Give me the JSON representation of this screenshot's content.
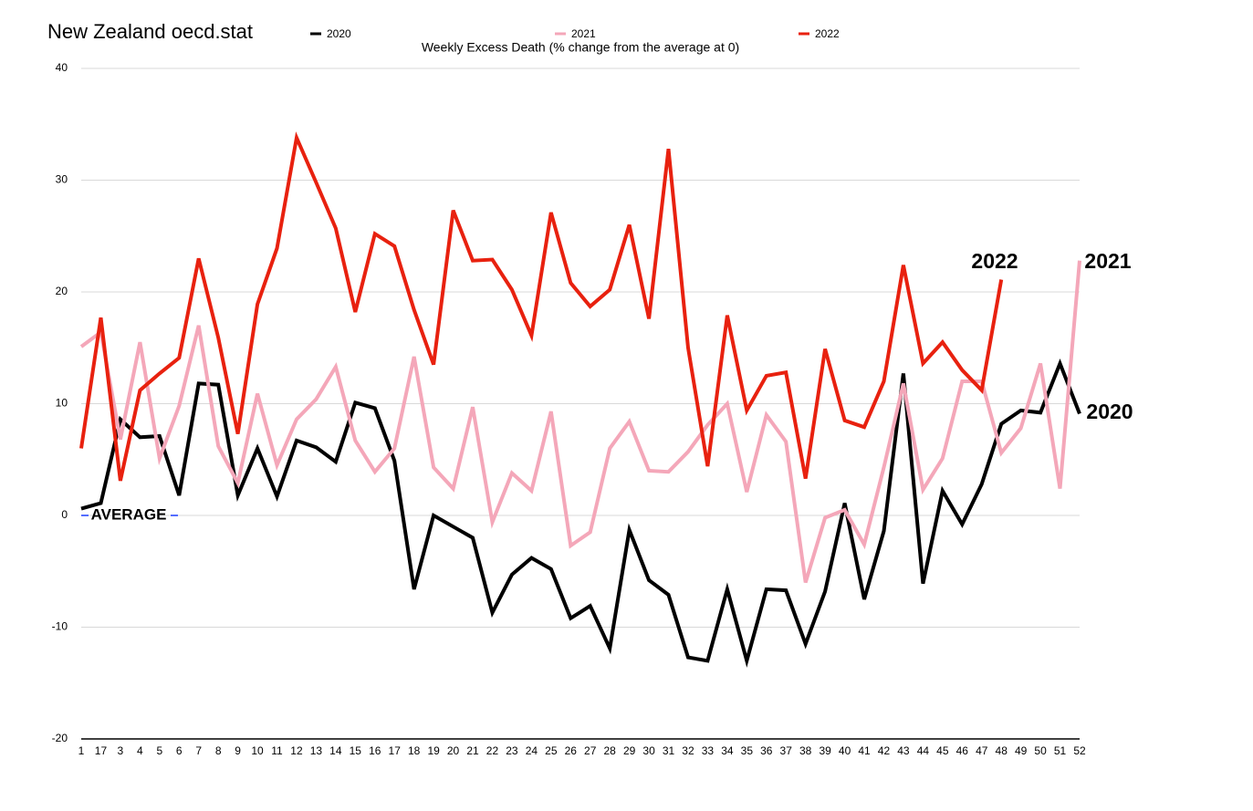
{
  "chart_data": {
    "type": "line",
    "title": "New Zealand oecd.stat",
    "subtitle": "Weekly Excess Death (% change from the average at 0)",
    "categories": [
      "1",
      "17",
      "3",
      "4",
      "5",
      "6",
      "7",
      "8",
      "9",
      "10",
      "11",
      "12",
      "13",
      "14",
      "15",
      "16",
      "17",
      "18",
      "19",
      "20",
      "21",
      "22",
      "23",
      "24",
      "25",
      "26",
      "27",
      "28",
      "29",
      "30",
      "31",
      "32",
      "33",
      "34",
      "35",
      "36",
      "37",
      "38",
      "39",
      "40",
      "41",
      "42",
      "43",
      "44",
      "45",
      "46",
      "47",
      "48",
      "49",
      "50",
      "51",
      "52"
    ],
    "series": [
      {
        "name": "2020",
        "color": "#000000",
        "values": [
          0.6,
          1.1,
          8.6,
          7.0,
          7.1,
          1.8,
          11.8,
          11.7,
          1.8,
          6.0,
          1.7,
          6.7,
          6.1,
          4.8,
          10.1,
          9.6,
          4.9,
          -6.6,
          0,
          -1.0,
          -2.0,
          -8.7,
          -5.3,
          -3.8,
          -4.8,
          -9.2,
          -8.1,
          -11.9,
          -1.3,
          -5.8,
          -7.1,
          -12.7,
          -13.0,
          -6.6,
          -13.0,
          -6.6,
          -6.7,
          -11.5,
          -6.8,
          1.1,
          -7.5,
          -1.4,
          12.7,
          -6.1,
          2.2,
          -0.8,
          2.8,
          8.2,
          9.4,
          9.2,
          13.6,
          9.1
        ]
      },
      {
        "name": "2021",
        "color": "#f4a7b9",
        "values": [
          15.1,
          16.4,
          6.8,
          15.5,
          5.1,
          9.8,
          17.0,
          6.2,
          2.9,
          10.9,
          4.5,
          8.6,
          10.4,
          13.3,
          6.7,
          3.9,
          6.0,
          14.2,
          4.3,
          2.4,
          9.7,
          -0.6,
          3.8,
          2.2,
          9.3,
          -2.7,
          -1.5,
          6.0,
          8.4,
          4.0,
          3.9,
          5.7,
          8.1,
          10.0,
          2.1,
          9.0,
          6.6,
          -6.0,
          -0.2,
          0.5,
          -2.6,
          4.3,
          11.8,
          2.3,
          5.1,
          12.0,
          12.0,
          5.6,
          7.8,
          13.6,
          2.4,
          22.8
        ]
      },
      {
        "name": "2022",
        "color": "#e8210f",
        "values": [
          6.0,
          17.7,
          3.1,
          11.2,
          12.7,
          14.1,
          23.0,
          15.9,
          7.3,
          18.9,
          23.9,
          33.8,
          29.8,
          25.7,
          18.2,
          25.2,
          24.1,
          18.4,
          13.5,
          27.3,
          22.8,
          22.9,
          20.2,
          16.1,
          27.1,
          20.8,
          18.7,
          20.2,
          26.0,
          17.6,
          32.8,
          15.0,
          4.4,
          17.9,
          9.4,
          12.5,
          12.8,
          3.3,
          14.9,
          8.5,
          7.9,
          12.0,
          22.4,
          13.6,
          15.5,
          13.0,
          11.2,
          21.1,
          null,
          null,
          null,
          null
        ]
      }
    ],
    "annotations": [
      {
        "text": "2022",
        "color": "#e8210f"
      },
      {
        "text": "2021",
        "color": "#f4a7b9"
      },
      {
        "text": "2020",
        "color": "#000000"
      },
      {
        "text": "AVERAGE",
        "color": "#1a3cff"
      }
    ],
    "ylim": [
      -20,
      40
    ],
    "yticks": [
      -20,
      -10,
      0,
      10,
      20,
      30,
      40
    ],
    "grid": true
  }
}
